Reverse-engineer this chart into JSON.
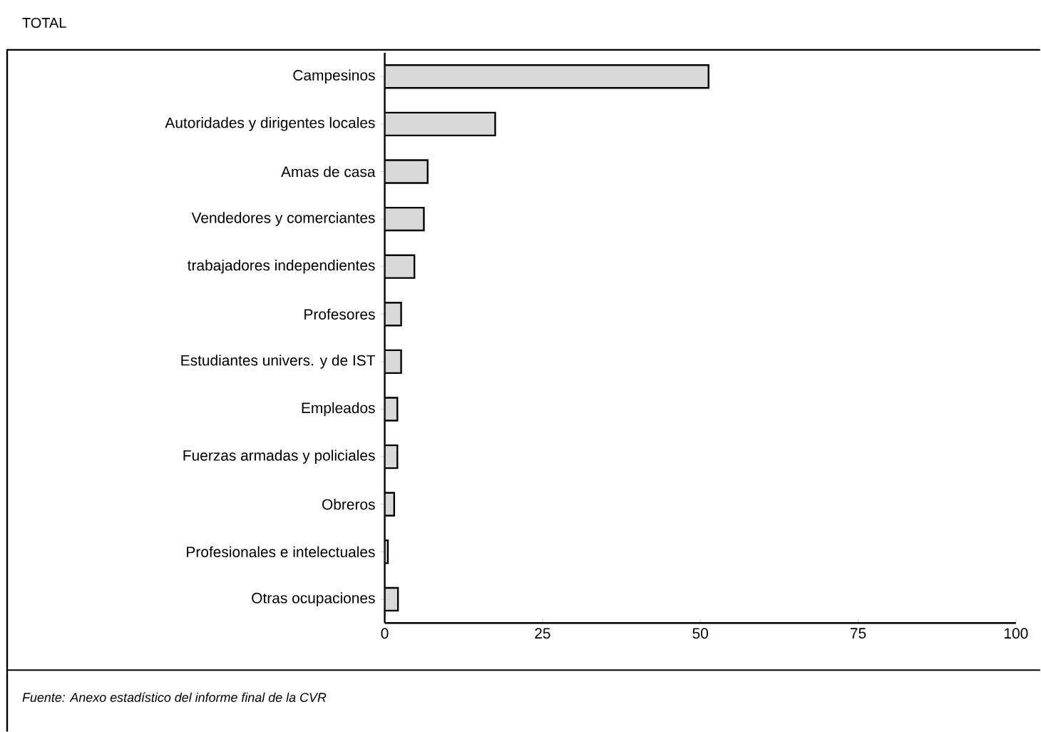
{
  "chart_data": {
    "type": "bar",
    "orientation": "horizontal",
    "title": "TOTAL",
    "categories": [
      "Campesinos",
      "Autoridades y dirigentes locales",
      "Amas de casa",
      "Vendedores y comerciantes",
      "trabajadores independientes",
      "Profesores",
      "Estudiantes univers. y de IST",
      "Empleados",
      "Fuerzas armadas y policiales",
      "Obreros",
      "Profesionales e intelectuales",
      "Otras ocupaciones"
    ],
    "values": [
      51.3,
      17.5,
      6.8,
      6.2,
      4.7,
      2.6,
      2.6,
      2.0,
      2.0,
      1.5,
      0.5,
      2.1
    ],
    "color": "#d9d9d9",
    "xlim": [
      0,
      100
    ],
    "xticks": [
      0,
      25,
      50,
      75,
      100
    ],
    "annotations": [
      "Fuente: Anexo estadístico del informe final de la CVR"
    ]
  }
}
